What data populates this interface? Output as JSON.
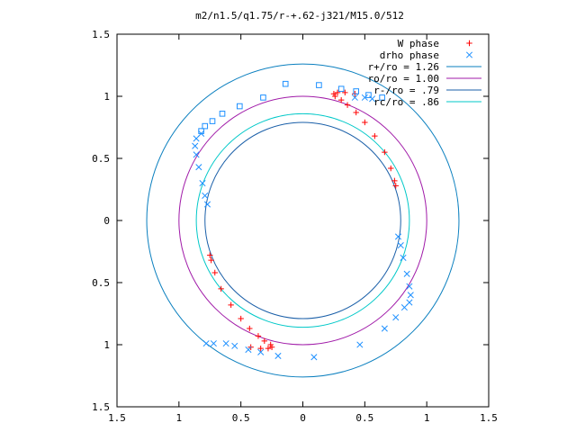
{
  "chart_data": {
    "type": "scatter",
    "title": "m2/n1.5/q1.75/r-+.62-j321/M15.0/512",
    "xlabel": "",
    "ylabel": "",
    "xlim": [
      -1.5,
      1.5
    ],
    "ylim": [
      -1.5,
      1.5
    ],
    "x_ticks": [
      "1.5",
      "1",
      "0.5",
      "0",
      "0.5",
      "1",
      "1.5"
    ],
    "y_ticks": [
      "1.5",
      "1",
      "0.5",
      "0",
      "0.5",
      "1",
      "1.5"
    ],
    "grid": false,
    "legend_position": "top-right",
    "circles": [
      {
        "name": "r+/ro = 1.26",
        "radius": 1.26,
        "color": "#0a7fbf"
      },
      {
        "name": "ro/ro = 1.00",
        "radius": 1.0,
        "color": "#a01aa8"
      },
      {
        "name": "r-/ro = .79",
        "radius": 0.79,
        "color": "#1a5fa8"
      },
      {
        "name": "rc/ro = .86",
        "radius": 0.86,
        "color": "#00c8c8"
      }
    ],
    "series": [
      {
        "name": "W phase",
        "marker": "plus",
        "color": "#ff0000",
        "points": [
          [
            0.75,
            0.28
          ],
          [
            0.74,
            0.32
          ],
          [
            0.71,
            0.42
          ],
          [
            0.66,
            0.55
          ],
          [
            0.58,
            0.68
          ],
          [
            0.5,
            0.79
          ],
          [
            0.43,
            0.87
          ],
          [
            0.36,
            0.93
          ],
          [
            0.31,
            0.97
          ],
          [
            0.26,
            1.0
          ],
          [
            0.25,
            1.02
          ],
          [
            0.28,
            1.03
          ],
          [
            0.34,
            1.03
          ],
          [
            0.42,
            1.02
          ],
          [
            -0.75,
            -0.28
          ],
          [
            -0.74,
            -0.32
          ],
          [
            -0.71,
            -0.42
          ],
          [
            -0.66,
            -0.55
          ],
          [
            -0.58,
            -0.68
          ],
          [
            -0.5,
            -0.79
          ],
          [
            -0.43,
            -0.87
          ],
          [
            -0.36,
            -0.93
          ],
          [
            -0.31,
            -0.97
          ],
          [
            -0.26,
            -1.0
          ],
          [
            -0.25,
            -1.02
          ],
          [
            -0.28,
            -1.03
          ],
          [
            -0.34,
            -1.03
          ],
          [
            -0.42,
            -1.02
          ]
        ]
      },
      {
        "name": "drho phase",
        "marker": "cross",
        "color": "#1e90ff",
        "points": [
          [
            0.42,
            0.99
          ],
          [
            0.5,
            0.99
          ],
          [
            0.56,
            0.98
          ],
          [
            -0.77,
            0.13
          ],
          [
            -0.79,
            0.2
          ],
          [
            -0.81,
            0.3
          ],
          [
            -0.84,
            0.43
          ],
          [
            -0.86,
            0.53
          ],
          [
            -0.87,
            0.6
          ],
          [
            -0.86,
            0.66
          ],
          [
            -0.82,
            0.7
          ],
          [
            0.77,
            -0.13
          ],
          [
            0.79,
            -0.2
          ],
          [
            0.81,
            -0.3
          ],
          [
            0.84,
            -0.43
          ],
          [
            0.86,
            -0.53
          ],
          [
            0.87,
            -0.6
          ],
          [
            0.86,
            -0.66
          ],
          [
            0.82,
            -0.7
          ],
          [
            0.75,
            -0.78
          ],
          [
            0.66,
            -0.87
          ],
          [
            0.46,
            -1.0
          ],
          [
            0.09,
            -1.1
          ],
          [
            -0.2,
            -1.09
          ],
          [
            -0.34,
            -1.06
          ],
          [
            -0.44,
            -1.04
          ],
          [
            -0.55,
            -1.01
          ],
          [
            -0.62,
            -0.99
          ],
          [
            -0.72,
            -0.99
          ],
          [
            -0.78,
            -0.99
          ]
        ]
      },
      {
        "name": "",
        "marker": "square",
        "color": "#1e90ff",
        "points": [
          [
            -0.82,
            0.72
          ],
          [
            -0.79,
            0.76
          ],
          [
            -0.73,
            0.8
          ],
          [
            -0.65,
            0.86
          ],
          [
            -0.51,
            0.92
          ],
          [
            -0.32,
            0.99
          ],
          [
            -0.14,
            1.1
          ],
          [
            0.13,
            1.09
          ],
          [
            0.31,
            1.06
          ],
          [
            0.43,
            1.04
          ],
          [
            0.53,
            1.01
          ],
          [
            0.64,
            0.99
          ]
        ]
      }
    ]
  }
}
